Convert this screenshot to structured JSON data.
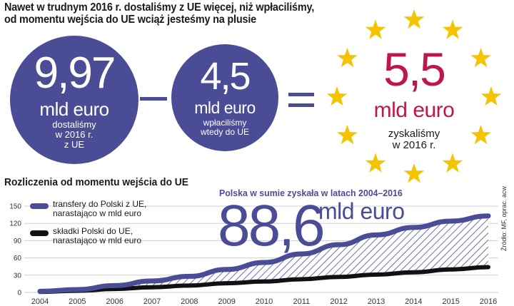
{
  "headline": {
    "line1": "Nawet w trudnym 2016 r. dostaliśmy z UE więcej, niż wpłaciliśmy,",
    "line2": "od momentu wejścia do UE wciąż jesteśmy na plusie"
  },
  "equation": {
    "received": {
      "value": "9,97",
      "unit": "mld euro",
      "desc_line1": "dostaliśmy",
      "desc_line2": "w 2016 r.",
      "desc_line3": "z UE"
    },
    "paid": {
      "value": "4,5",
      "unit": "mld euro",
      "desc_line1": "wpłaciliśmy",
      "desc_line2": "wtedy do UE"
    },
    "result": {
      "value": "5,5",
      "unit": "mld euro",
      "desc_line1": "zyskaliśmy",
      "desc_line2": "w 2016 r."
    }
  },
  "section_title": "Rozliczenia od momentu wejścia do UE",
  "chart_title": "Polska w sumie zyskała w latach 2004–2016",
  "total": {
    "value": "88,6",
    "unit": "mld euro"
  },
  "legend": {
    "transfers": {
      "line1": "transfery do Polski z UE,",
      "line2": "narastająco w mld euro"
    },
    "contributions": {
      "line1": "składki Polski do UE,",
      "line2": "narastająco w mld euro"
    }
  },
  "source": "Źródło: MF, oprac. acw",
  "colors": {
    "accent": "#4a4c96",
    "result": "#c0174b",
    "star": "#f5c400",
    "contrib": "#111111"
  },
  "chart_data": {
    "type": "area",
    "x": [
      2004,
      2005,
      2006,
      2007,
      2008,
      2009,
      2010,
      2011,
      2012,
      2013,
      2014,
      2015,
      2016
    ],
    "series": [
      {
        "name": "transfery do Polski z UE, narastająco w mld euro",
        "values": [
          2,
          5,
          12,
          20,
          28,
          40,
          52,
          67,
          83,
          100,
          113,
          124,
          133
        ]
      },
      {
        "name": "składki Polski do UE, narastająco w mld euro",
        "values": [
          1,
          3,
          6,
          9,
          12,
          16,
          19,
          23,
          27,
          31,
          35,
          40,
          44
        ]
      }
    ],
    "yticks": [
      0,
      30,
      60,
      90,
      120,
      150
    ],
    "ylim": [
      0,
      150
    ],
    "xlim": [
      2004,
      2016
    ],
    "grid": true,
    "legend": "top-left"
  }
}
